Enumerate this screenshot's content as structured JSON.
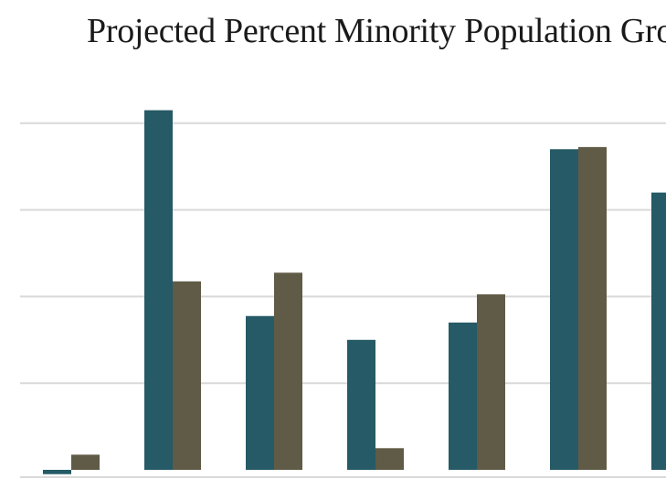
{
  "chart_data": {
    "type": "bar",
    "title": "Projected Percent Minority Population Gro",
    "xlabel": "",
    "ylabel": "",
    "grid": true,
    "ylim": [
      -1,
      21
    ],
    "gridlines": [
      0,
      4,
      8,
      12,
      16
    ],
    "categories": [
      "",
      "",
      "",
      "",
      "",
      "",
      ""
    ],
    "series": [
      {
        "values": [
          -0.2,
          16.6,
          7.1,
          6.0,
          6.8,
          14.8,
          12.8
        ],
        "color": "#255a66"
      },
      {
        "values": [
          0.7,
          8.7,
          9.1,
          1.0,
          8.1,
          14.9,
          null
        ],
        "color": "#5f5b46"
      }
    ]
  }
}
